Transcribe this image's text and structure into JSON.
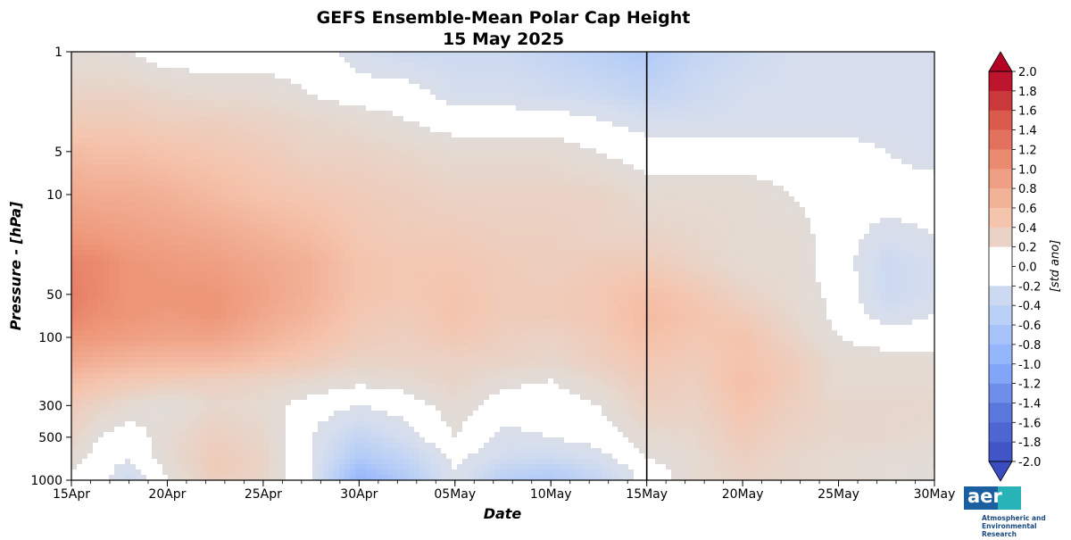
{
  "chart_data": {
    "type": "heatmap",
    "title": "GEFS Ensemble-Mean Polar Cap Height",
    "subtitle": "15 May 2025",
    "xlabel": "Date",
    "ylabel": "Pressure - [hPa]",
    "colorbar_label": "[std ano]",
    "x_ticks": [
      "15Apr",
      "20Apr",
      "25Apr",
      "30Apr",
      "05May",
      "10May",
      "15May",
      "20May",
      "25May",
      "30May"
    ],
    "x_tick_days": [
      0,
      5,
      10,
      15,
      20,
      25,
      30,
      35,
      40,
      45
    ],
    "y_ticks": [
      1,
      5,
      10,
      50,
      100,
      300,
      500,
      1000
    ],
    "y_scale": "log",
    "ylim": [
      1000,
      1
    ],
    "xlim": [
      0,
      45
    ],
    "forecast_start_day": 30,
    "colorbar_ticks": [
      "2.0",
      "1.8",
      "1.6",
      "1.4",
      "1.2",
      "1.0",
      "0.8",
      "0.6",
      "0.4",
      "0.2",
      "0.0",
      "-0.2",
      "-0.4",
      "-0.6",
      "-0.8",
      "-1.0",
      "-1.2",
      "-1.4",
      "-1.6",
      "-1.8",
      "-2.0"
    ],
    "colorbar_range": [
      -2.0,
      2.0
    ],
    "pressure_levels": [
      1,
      2,
      3,
      5,
      10,
      20,
      30,
      50,
      70,
      100,
      150,
      200,
      300,
      500,
      700,
      850,
      1000
    ],
    "grid_days": [
      0,
      1.5,
      3,
      5,
      7.5,
      10,
      12.5,
      15,
      17.5,
      20,
      22.5,
      25,
      27.5,
      30,
      32.5,
      35,
      37.5,
      40,
      42.5,
      45
    ],
    "values": [
      [
        0.15,
        0.15,
        0.1,
        0.0,
        0.0,
        0.0,
        0.0,
        -0.2,
        -0.3,
        -0.3,
        -0.3,
        -0.4,
        -0.5,
        -0.6,
        -0.4,
        -0.3,
        -0.2,
        -0.2,
        -0.2,
        -0.2
      ],
      [
        0.3,
        0.3,
        0.3,
        0.25,
        0.2,
        0.2,
        0.1,
        0.0,
        0.0,
        -0.2,
        -0.2,
        -0.25,
        -0.3,
        -0.4,
        -0.3,
        -0.2,
        -0.2,
        -0.2,
        -0.2,
        -0.2
      ],
      [
        0.4,
        0.4,
        0.4,
        0.35,
        0.35,
        0.3,
        0.25,
        0.2,
        0.1,
        0.0,
        0.0,
        0.0,
        -0.1,
        -0.2,
        -0.2,
        -0.2,
        -0.2,
        -0.2,
        -0.2,
        -0.2
      ],
      [
        0.6,
        0.55,
        0.55,
        0.5,
        0.45,
        0.4,
        0.3,
        0.3,
        0.25,
        0.2,
        0.2,
        0.2,
        0.1,
        0.0,
        0.0,
        0.0,
        0.0,
        0.0,
        -0.1,
        -0.2
      ],
      [
        0.8,
        0.75,
        0.75,
        0.7,
        0.6,
        0.5,
        0.45,
        0.4,
        0.35,
        0.3,
        0.3,
        0.3,
        0.3,
        0.2,
        0.2,
        0.2,
        0.1,
        0.0,
        0.0,
        0.0
      ],
      [
        1.0,
        0.95,
        0.9,
        0.85,
        0.8,
        0.7,
        0.6,
        0.45,
        0.4,
        0.4,
        0.35,
        0.35,
        0.3,
        0.3,
        0.25,
        0.2,
        0.2,
        0.0,
        -0.2,
        -0.1
      ],
      [
        1.15,
        1.1,
        1.0,
        0.95,
        0.9,
        0.8,
        0.7,
        0.5,
        0.45,
        0.45,
        0.4,
        0.35,
        0.4,
        0.4,
        0.3,
        0.2,
        0.2,
        0.0,
        -0.3,
        -0.2
      ],
      [
        1.2,
        1.1,
        1.0,
        1.0,
        1.0,
        0.85,
        0.7,
        0.5,
        0.45,
        0.5,
        0.4,
        0.4,
        0.45,
        0.55,
        0.45,
        0.3,
        0.2,
        0.05,
        -0.3,
        -0.2
      ],
      [
        1.15,
        1.05,
        1.0,
        0.95,
        1.0,
        0.8,
        0.65,
        0.45,
        0.4,
        0.5,
        0.4,
        0.4,
        0.45,
        0.6,
        0.5,
        0.4,
        0.25,
        0.05,
        -0.2,
        -0.1
      ],
      [
        1.0,
        0.95,
        0.9,
        0.85,
        0.85,
        0.7,
        0.55,
        0.4,
        0.35,
        0.45,
        0.35,
        0.3,
        0.4,
        0.55,
        0.45,
        0.5,
        0.3,
        0.1,
        0.0,
        0.0
      ],
      [
        0.8,
        0.7,
        0.65,
        0.6,
        0.6,
        0.5,
        0.4,
        0.3,
        0.3,
        0.3,
        0.3,
        0.25,
        0.35,
        0.45,
        0.4,
        0.5,
        0.4,
        0.2,
        0.2,
        0.2
      ],
      [
        0.6,
        0.5,
        0.45,
        0.4,
        0.35,
        0.3,
        0.25,
        0.15,
        0.2,
        0.3,
        0.15,
        0.1,
        0.25,
        0.4,
        0.35,
        0.55,
        0.4,
        0.2,
        0.2,
        0.2
      ],
      [
        0.4,
        0.3,
        0.2,
        0.1,
        0.25,
        0.2,
        0.0,
        -0.1,
        0.0,
        0.2,
        0.0,
        0.0,
        0.1,
        0.35,
        0.3,
        0.5,
        0.35,
        0.25,
        0.25,
        0.25
      ],
      [
        0.3,
        0.1,
        0.0,
        0.2,
        0.35,
        0.25,
        -0.1,
        -0.4,
        -0.2,
        0.1,
        -0.15,
        -0.1,
        0.0,
        0.2,
        0.25,
        0.4,
        0.3,
        0.25,
        0.25,
        0.2
      ],
      [
        0.2,
        0.0,
        -0.1,
        0.2,
        0.4,
        0.3,
        -0.1,
        -0.6,
        -0.4,
        -0.05,
        -0.25,
        -0.3,
        -0.2,
        0.1,
        0.2,
        0.35,
        0.25,
        0.2,
        0.15,
        0.15
      ],
      [
        0.1,
        0.0,
        -0.2,
        0.15,
        0.4,
        0.3,
        -0.1,
        -0.8,
        -0.5,
        -0.1,
        -0.4,
        -0.5,
        -0.3,
        0.0,
        0.2,
        0.3,
        0.25,
        0.2,
        0.15,
        0.1
      ],
      [
        0.0,
        0.0,
        -0.3,
        0.1,
        0.35,
        0.25,
        -0.1,
        -0.9,
        -0.6,
        -0.1,
        -0.5,
        -0.6,
        -0.4,
        0.0,
        0.2,
        0.3,
        0.25,
        0.2,
        0.15,
        0.1
      ]
    ]
  },
  "logo": {
    "text": "aer",
    "subtitle_line1": "Atmospheric and",
    "subtitle_line2": "Environmental Research"
  }
}
